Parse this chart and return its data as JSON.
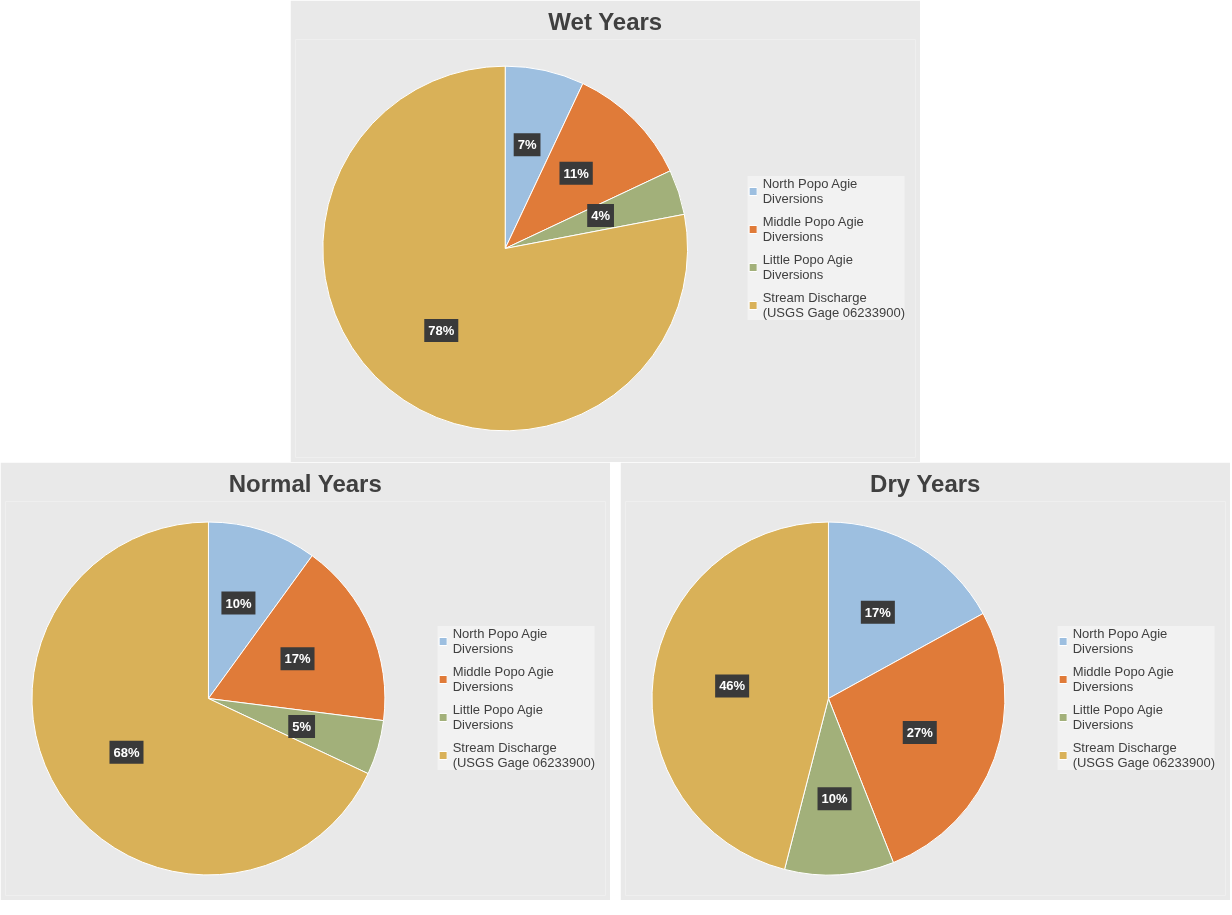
{
  "chart_data": [
    {
      "type": "pie",
      "title": "Wet Years",
      "categories": [
        "North Popo Agie Diversions",
        "Middle Popo Agie Diversions",
        "Little Popo Agie Diversions",
        "Stream Discharge (USGS Gage 06233900)"
      ],
      "values": [
        7,
        11,
        4,
        78
      ],
      "value_labels": [
        "7%",
        "11%",
        "4%",
        "78%"
      ],
      "colors": [
        "#9dbfe0",
        "#e07b39",
        "#a2b07a",
        "#d9b158"
      ],
      "legend": "right"
    },
    {
      "type": "pie",
      "title": "Normal Years",
      "categories": [
        "North Popo Agie Diversions",
        "Middle Popo Agie Diversions",
        "Little Popo Agie Diversions",
        "Stream Discharge (USGS Gage 06233900)"
      ],
      "values": [
        10,
        17,
        5,
        68
      ],
      "value_labels": [
        "10%",
        "17%",
        "5%",
        "68%"
      ],
      "colors": [
        "#9dbfe0",
        "#e07b39",
        "#a2b07a",
        "#d9b158"
      ],
      "legend": "right"
    },
    {
      "type": "pie",
      "title": "Dry Years",
      "categories": [
        "North Popo Agie Diversions",
        "Middle Popo Agie Diversions",
        "Little Popo Agie Diversions",
        "Stream Discharge (USGS Gage 06233900)"
      ],
      "values": [
        17,
        27,
        10,
        46
      ],
      "value_labels": [
        "17%",
        "27%",
        "10%",
        "46%"
      ],
      "colors": [
        "#9dbfe0",
        "#e07b39",
        "#a2b07a",
        "#d9b158"
      ],
      "legend": "right"
    }
  ]
}
